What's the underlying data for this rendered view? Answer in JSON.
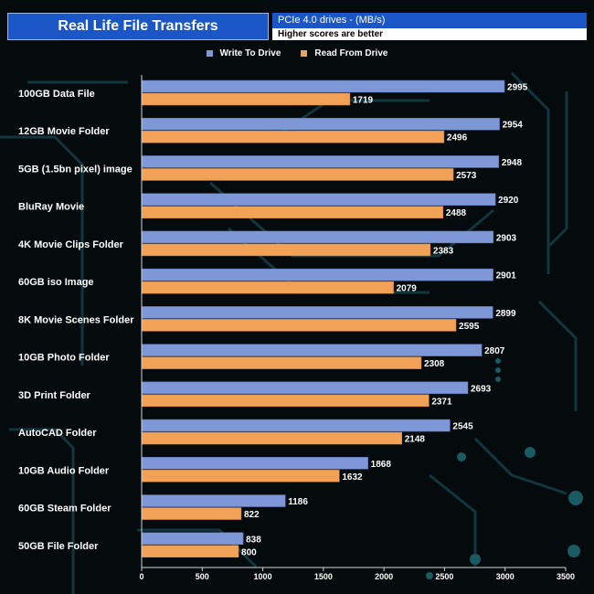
{
  "header": {
    "title": "Real Life File Transfers",
    "subtitle": "PCIe 4.0 drives - (MB/s)",
    "note": "Higher scores are better"
  },
  "colors": {
    "write": "#7e97d6",
    "read": "#f2a257",
    "accent": "#1a56c6"
  },
  "chart_data": {
    "type": "bar",
    "orientation": "horizontal",
    "categories": [
      "100GB Data File",
      "12GB Movie Folder",
      "5GB (1.5bn pixel) image",
      "BluRay Movie",
      "4K Movie Clips Folder",
      "60GB iso Image",
      "8K Movie Scenes Folder",
      "10GB Photo Folder",
      "3D Print Folder",
      "AutoCAD Folder",
      "10GB Audio Folder",
      "60GB Steam Folder",
      "50GB File Folder"
    ],
    "series": [
      {
        "name": "Write To  Drive",
        "values": [
          2995,
          2954,
          2948,
          2920,
          2903,
          2901,
          2899,
          2807,
          2693,
          2545,
          1868,
          1186,
          838
        ]
      },
      {
        "name": "Read From  Drive",
        "values": [
          1719,
          2496,
          2573,
          2488,
          2383,
          2079,
          2595,
          2308,
          2371,
          2148,
          1632,
          822,
          800
        ]
      }
    ],
    "xlim": [
      0,
      3500
    ],
    "xticks": [
      0,
      500,
      1000,
      1500,
      2000,
      2500,
      3000,
      3500
    ],
    "legend_position": "top",
    "grid": false
  }
}
